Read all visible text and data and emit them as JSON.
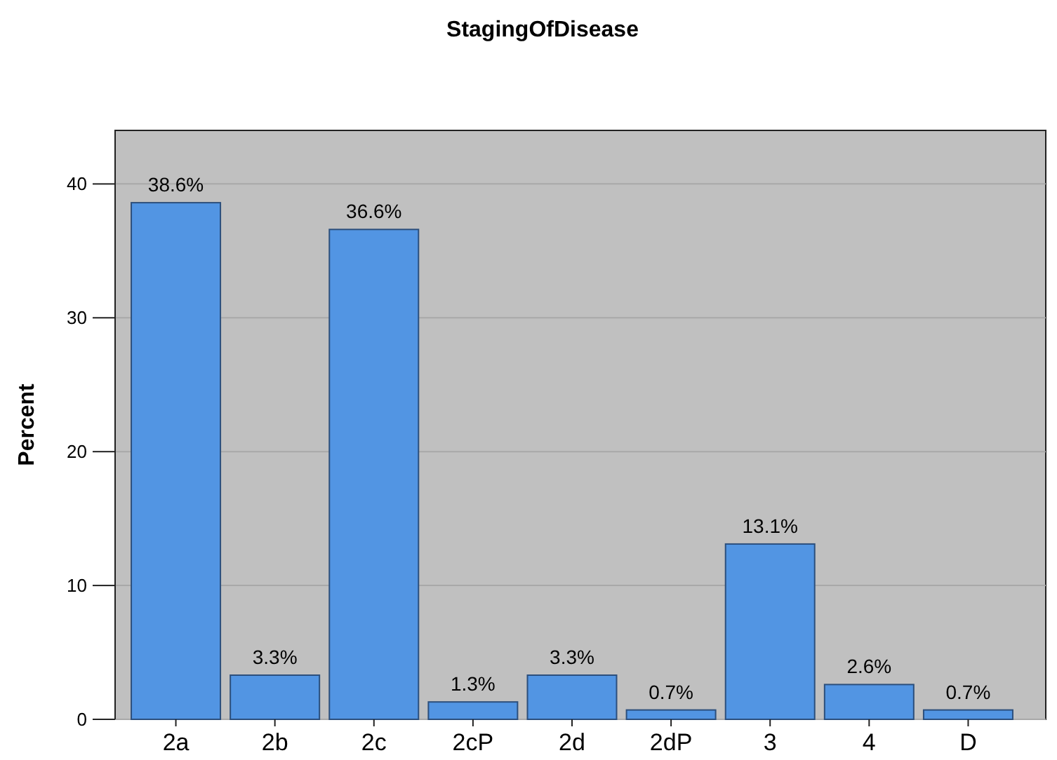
{
  "chart_data": {
    "type": "bar",
    "title": "StagingOfDisease",
    "ylabel": "Percent",
    "categories": [
      "2a",
      "2b",
      "2c",
      "2cP",
      "2d",
      "2dP",
      "3",
      "4",
      "D"
    ],
    "values": [
      38.6,
      3.3,
      36.6,
      1.3,
      3.3,
      0.7,
      13.1,
      2.6,
      0.7
    ],
    "value_labels": [
      "38.6%",
      "3.3%",
      "36.6%",
      "1.3%",
      "3.3%",
      "0.7%",
      "13.1%",
      "2.6%",
      "0.7%"
    ],
    "color": "#5295e3",
    "ylim": [
      0,
      44
    ],
    "yticks": [
      0,
      10,
      20,
      30,
      40
    ],
    "grid": "y"
  }
}
